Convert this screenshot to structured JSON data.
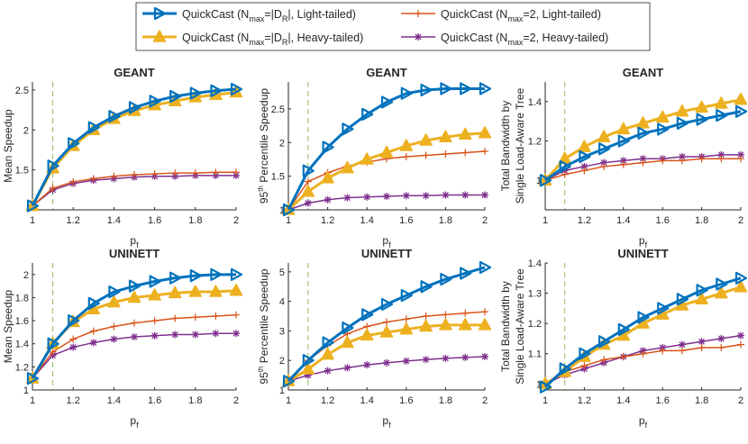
{
  "legend": [
    {
      "prefix": "QuickCast (N",
      "sub1": "max",
      "mid": "=|D",
      "sub2": "R",
      "suffix": "|, Light-tailed)",
      "color": "#0072BD",
      "marker": "triangle-right",
      "width": 3
    },
    {
      "prefix": "QuickCast (N",
      "sub1": "max",
      "mid": "=2, Light-tailed)",
      "sub2": "",
      "suffix": "",
      "color": "#D95319",
      "marker": "plus",
      "width": 1.5
    },
    {
      "prefix": "QuickCast (N",
      "sub1": "max",
      "mid": "=|D",
      "sub2": "R",
      "suffix": "|, Heavy-tailed)",
      "color": "#EDB120",
      "marker": "triangle-up",
      "width": 3
    },
    {
      "prefix": "QuickCast (N",
      "sub1": "max",
      "mid": "=2, Heavy-tailed)",
      "sub2": "",
      "suffix": "",
      "color": "#7E2F8E",
      "marker": "asterisk",
      "width": 1.5
    }
  ],
  "xlabel": {
    "main": "p",
    "sub": "f"
  },
  "chart_data": [
    {
      "type": "line",
      "title": "GEANT",
      "ylabel": [
        "Mean Speedup"
      ],
      "xlim": [
        1,
        2
      ],
      "ylim": [
        1,
        2.6
      ],
      "xticks": [
        "1",
        "1.2",
        "1.4",
        "1.6",
        "1.8",
        "2"
      ],
      "yticks": [
        "1.5",
        "2",
        "2.5"
      ],
      "ref_line_x": 1.1,
      "x": [
        1,
        1.1,
        1.2,
        1.3,
        1.4,
        1.5,
        1.6,
        1.7,
        1.8,
        1.9,
        2
      ],
      "series": [
        {
          "name": "QuickCast (Nmax=|DR|, Light-tailed)",
          "values": [
            1.05,
            1.55,
            1.83,
            2.03,
            2.17,
            2.28,
            2.36,
            2.42,
            2.46,
            2.49,
            2.51
          ]
        },
        {
          "name": "QuickCast (Nmax=|DR|, Heavy-tailed)",
          "values": [
            1.05,
            1.52,
            1.8,
            2.0,
            2.14,
            2.24,
            2.31,
            2.36,
            2.41,
            2.44,
            2.47
          ]
        },
        {
          "name": "QuickCast (Nmax=2, Light-tailed)",
          "values": [
            1.05,
            1.27,
            1.35,
            1.39,
            1.42,
            1.44,
            1.45,
            1.46,
            1.46,
            1.47,
            1.47
          ]
        },
        {
          "name": "QuickCast (Nmax=2, Heavy-tailed)",
          "values": [
            1.05,
            1.25,
            1.33,
            1.37,
            1.39,
            1.41,
            1.42,
            1.42,
            1.43,
            1.43,
            1.43
          ]
        }
      ]
    },
    {
      "type": "line",
      "title": "GEANT",
      "ylabel": [
        "95th Percentile Speedup"
      ],
      "xlim": [
        1,
        2
      ],
      "ylim": [
        1,
        2.9
      ],
      "xticks": [
        "1",
        "1.2",
        "1.4",
        "1.6",
        "1.8",
        "2"
      ],
      "yticks": [
        "1",
        "1.5",
        "2",
        "2.5"
      ],
      "ref_line_x": 1.1,
      "x": [
        1,
        1.1,
        1.2,
        1.3,
        1.4,
        1.5,
        1.6,
        1.7,
        1.8,
        1.9,
        2
      ],
      "series": [
        {
          "name": "QuickCast (Nmax=|DR|, Light-tailed)",
          "values": [
            1.0,
            1.58,
            1.93,
            2.2,
            2.42,
            2.6,
            2.73,
            2.78,
            2.8,
            2.8,
            2.8
          ]
        },
        {
          "name": "QuickCast (Nmax=|DR|, Heavy-tailed)",
          "values": [
            1.0,
            1.27,
            1.47,
            1.62,
            1.75,
            1.85,
            1.95,
            2.03,
            2.08,
            2.12,
            2.14
          ]
        },
        {
          "name": "QuickCast (Nmax=2, Light-tailed)",
          "values": [
            1.0,
            1.42,
            1.55,
            1.65,
            1.71,
            1.76,
            1.79,
            1.81,
            1.83,
            1.85,
            1.87
          ]
        },
        {
          "name": "QuickCast (Nmax=2, Heavy-tailed)",
          "values": [
            1.0,
            1.1,
            1.15,
            1.18,
            1.19,
            1.2,
            1.21,
            1.21,
            1.22,
            1.22,
            1.22
          ]
        }
      ]
    },
    {
      "type": "line",
      "title": "GEANT",
      "ylabel": [
        "Total Bandwidth by",
        "Single Load-Aware Tree"
      ],
      "xlim": [
        1,
        2
      ],
      "ylim": [
        0.85,
        1.5
      ],
      "xticks": [
        "1",
        "1.2",
        "1.4",
        "1.6",
        "1.8",
        "2"
      ],
      "yticks": [
        "1",
        "1.2",
        "1.4"
      ],
      "ref_line_x": 1.1,
      "x": [
        1,
        1.1,
        1.2,
        1.3,
        1.4,
        1.5,
        1.6,
        1.7,
        1.8,
        1.9,
        2
      ],
      "series": [
        {
          "name": "QuickCast (Nmax=|DR|, Light-tailed)",
          "values": [
            1.0,
            1.07,
            1.12,
            1.16,
            1.2,
            1.24,
            1.26,
            1.29,
            1.31,
            1.33,
            1.35
          ]
        },
        {
          "name": "QuickCast (Nmax=|DR|, Heavy-tailed)",
          "values": [
            1.0,
            1.11,
            1.17,
            1.22,
            1.26,
            1.29,
            1.32,
            1.35,
            1.37,
            1.39,
            1.41
          ]
        },
        {
          "name": "QuickCast (Nmax=2, Light-tailed)",
          "values": [
            1.0,
            1.03,
            1.05,
            1.07,
            1.08,
            1.09,
            1.1,
            1.1,
            1.11,
            1.11,
            1.11
          ]
        },
        {
          "name": "QuickCast (Nmax=2, Heavy-tailed)",
          "values": [
            1.0,
            1.05,
            1.07,
            1.09,
            1.1,
            1.11,
            1.11,
            1.12,
            1.12,
            1.13,
            1.13
          ]
        }
      ]
    },
    {
      "type": "line",
      "title": "UNINETT",
      "ylabel": [
        "Mean Speedup"
      ],
      "xlim": [
        1,
        2
      ],
      "ylim": [
        1,
        2.1
      ],
      "xticks": [
        "1",
        "1.2",
        "1.4",
        "1.6",
        "1.8",
        "2"
      ],
      "yticks": [
        "1",
        "1.2",
        "1.4",
        "1.6",
        "1.8",
        "2"
      ],
      "ref_line_x": 1.1,
      "x": [
        1,
        1.1,
        1.2,
        1.3,
        1.4,
        1.5,
        1.6,
        1.7,
        1.8,
        1.9,
        2
      ],
      "series": [
        {
          "name": "QuickCast (Nmax=|DR|, Light-tailed)",
          "values": [
            1.1,
            1.4,
            1.6,
            1.75,
            1.85,
            1.9,
            1.94,
            1.97,
            1.99,
            2.0,
            2.0
          ]
        },
        {
          "name": "QuickCast (Nmax=|DR|, Heavy-tailed)",
          "values": [
            1.1,
            1.4,
            1.59,
            1.7,
            1.76,
            1.8,
            1.82,
            1.84,
            1.85,
            1.85,
            1.86
          ]
        },
        {
          "name": "QuickCast (Nmax=2, Light-tailed)",
          "values": [
            1.1,
            1.33,
            1.44,
            1.51,
            1.55,
            1.58,
            1.6,
            1.62,
            1.63,
            1.64,
            1.65
          ]
        },
        {
          "name": "QuickCast (Nmax=2, Heavy-tailed)",
          "values": [
            1.1,
            1.3,
            1.37,
            1.41,
            1.44,
            1.46,
            1.47,
            1.48,
            1.48,
            1.49,
            1.49
          ]
        }
      ]
    },
    {
      "type": "line",
      "title": "UNINETT",
      "ylabel": [
        "95th Percentile Speedup"
      ],
      "xlim": [
        1,
        2
      ],
      "ylim": [
        1,
        5.3
      ],
      "xticks": [
        "1",
        "1.2",
        "1.4",
        "1.6",
        "1.8",
        "2"
      ],
      "yticks": [
        "1",
        "2",
        "3",
        "4",
        "5"
      ],
      "ref_line_x": 1.1,
      "x": [
        1,
        1.1,
        1.2,
        1.3,
        1.4,
        1.5,
        1.6,
        1.7,
        1.8,
        1.9,
        2
      ],
      "series": [
        {
          "name": "QuickCast (Nmax=|DR|, Light-tailed)",
          "values": [
            1.3,
            2.0,
            2.6,
            3.1,
            3.55,
            3.9,
            4.2,
            4.5,
            4.75,
            4.95,
            5.15
          ]
        },
        {
          "name": "QuickCast (Nmax=|DR|, Heavy-tailed)",
          "values": [
            1.3,
            1.7,
            2.2,
            2.6,
            2.85,
            2.95,
            3.05,
            3.15,
            3.2,
            3.2,
            3.2
          ]
        },
        {
          "name": "QuickCast (Nmax=2, Light-tailed)",
          "values": [
            1.3,
            2.0,
            2.5,
            2.9,
            3.15,
            3.3,
            3.4,
            3.5,
            3.55,
            3.6,
            3.65
          ]
        },
        {
          "name": "QuickCast (Nmax=2, Heavy-tailed)",
          "values": [
            1.3,
            1.5,
            1.65,
            1.75,
            1.85,
            1.92,
            1.98,
            2.03,
            2.07,
            2.1,
            2.13
          ]
        }
      ]
    },
    {
      "type": "line",
      "title": "UNINETT",
      "ylabel": [
        "Total Bandwidth by",
        "Single Load-Aware Tree"
      ],
      "xlim": [
        1,
        2
      ],
      "ylim": [
        0.98,
        1.4
      ],
      "xticks": [
        "1",
        "1.2",
        "1.4",
        "1.6",
        "1.8",
        "2"
      ],
      "yticks": [
        "1",
        "1.1",
        "1.2",
        "1.3",
        "1.4"
      ],
      "ref_line_x": 1.1,
      "x": [
        1,
        1.1,
        1.2,
        1.3,
        1.4,
        1.5,
        1.6,
        1.7,
        1.8,
        1.9,
        2
      ],
      "series": [
        {
          "name": "QuickCast (Nmax=|DR|, Light-tailed)",
          "values": [
            0.99,
            1.05,
            1.1,
            1.14,
            1.18,
            1.22,
            1.25,
            1.28,
            1.31,
            1.33,
            1.35
          ]
        },
        {
          "name": "QuickCast (Nmax=|DR|, Heavy-tailed)",
          "values": [
            1.0,
            1.04,
            1.09,
            1.13,
            1.16,
            1.2,
            1.23,
            1.26,
            1.28,
            1.3,
            1.32
          ]
        },
        {
          "name": "QuickCast (Nmax=2, Light-tailed)",
          "values": [
            1.0,
            1.04,
            1.06,
            1.08,
            1.09,
            1.1,
            1.11,
            1.11,
            1.12,
            1.12,
            1.13
          ]
        },
        {
          "name": "QuickCast (Nmax=2, Heavy-tailed)",
          "values": [
            1.0,
            1.03,
            1.05,
            1.07,
            1.09,
            1.11,
            1.12,
            1.13,
            1.14,
            1.15,
            1.16
          ]
        }
      ]
    }
  ]
}
